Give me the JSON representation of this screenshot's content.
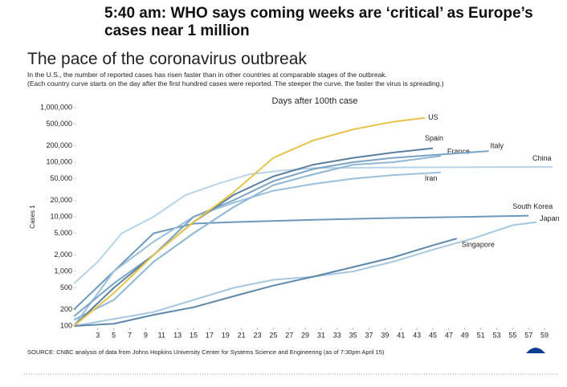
{
  "headline": "5:40 am: WHO says coming weeks are ‘critical’ as Europe’s cases near 1 million",
  "chart_data": {
    "type": "line",
    "title": "The pace of the coronavirus outbreak",
    "subtitle": [
      "In the U.S., the number of reported cases has risen faster than in other countries at comparable stages of the outbreak.",
      "(Each country curve starts on the day after the first hundred cases were reported. The steeper the curve, the faster the virus is spreading.)"
    ],
    "x_label": "Days after 100th case",
    "y_label": "Cases 1",
    "source": "SOURCE: CNBC analysis of data from Johns Hopkins University Center for Systems Science and Engineering (as of 7:30pm April 15)",
    "log_y": true,
    "xlim": [
      0,
      60
    ],
    "xticks": [
      3,
      5,
      7,
      9,
      11,
      13,
      15,
      17,
      19,
      21,
      23,
      25,
      27,
      29,
      31,
      33,
      35,
      37,
      39,
      41,
      43,
      45,
      47,
      49,
      51,
      53,
      55,
      57,
      59
    ],
    "ylim": [
      100,
      1000000
    ],
    "yticks": [
      100,
      200,
      500,
      {
        "value": 1000,
        "label": "1,000"
      },
      {
        "value": 2000,
        "label": "2,000"
      },
      {
        "value": 5000,
        "label": "5,000"
      },
      {
        "value": 10000,
        "label": "10,000"
      },
      {
        "value": 20000,
        "label": "20,000"
      },
      {
        "value": 50000,
        "label": "50,000"
      },
      {
        "value": 100000,
        "label": "100,000"
      },
      {
        "value": 200000,
        "label": "200,000"
      },
      {
        "value": 500000,
        "label": "500,000"
      },
      {
        "value": 1000000,
        "label": "1,000,000"
      }
    ],
    "series": [
      {
        "name": "China",
        "color": "#b7d4e8",
        "x": [
          0,
          3,
          6,
          10,
          14,
          18,
          22,
          26,
          30,
          40,
          50,
          60
        ],
        "values": [
          600,
          1500,
          5000,
          10000,
          25000,
          40000,
          60000,
          70000,
          78000,
          80000,
          81000,
          82000
        ]
      },
      {
        "name": "Japan",
        "color": "#a6c7e0",
        "x": [
          0,
          10,
          20,
          25,
          30,
          35,
          40,
          45,
          50,
          55,
          58
        ],
        "values": [
          100,
          180,
          500,
          700,
          800,
          1000,
          1500,
          2500,
          4000,
          7000,
          8000
        ]
      },
      {
        "name": "Singapore",
        "color": "#5e87ab",
        "x": [
          0,
          5,
          10,
          15,
          20,
          25,
          30,
          35,
          40,
          45,
          48
        ],
        "values": [
          100,
          110,
          160,
          220,
          350,
          550,
          800,
          1200,
          1800,
          3000,
          4000
        ]
      },
      {
        "name": "South Korea",
        "color": "#6d98bb",
        "x": [
          0,
          5,
          10,
          15,
          20,
          30,
          40,
          50,
          57
        ],
        "values": [
          200,
          1000,
          5000,
          7500,
          8000,
          8800,
          9500,
          10000,
          10500
        ]
      },
      {
        "name": "Iran",
        "color": "#9ac0dc",
        "x": [
          0,
          5,
          10,
          15,
          20,
          25,
          30,
          35,
          40,
          46
        ],
        "values": [
          100,
          1000,
          3500,
          10000,
          18000,
          30000,
          40000,
          50000,
          58000,
          65000
        ]
      },
      {
        "name": "France",
        "color": "#8fb6d4",
        "x": [
          0,
          5,
          10,
          15,
          20,
          25,
          30,
          35,
          40,
          46
        ],
        "values": [
          130,
          300,
          1500,
          5000,
          15000,
          38000,
          60000,
          90000,
          100000,
          130000
        ]
      },
      {
        "name": "Italy",
        "color": "#7aa3c4",
        "x": [
          0,
          5,
          10,
          15,
          20,
          25,
          30,
          35,
          40,
          45,
          52
        ],
        "values": [
          150,
          600,
          2000,
          10000,
          20000,
          45000,
          75000,
          100000,
          120000,
          135000,
          160000
        ]
      },
      {
        "name": "Spain",
        "color": "#5a7fa0",
        "x": [
          0,
          5,
          10,
          15,
          20,
          25,
          30,
          35,
          40,
          45
        ],
        "values": [
          100,
          500,
          2000,
          8000,
          25000,
          55000,
          90000,
          120000,
          150000,
          180000
        ]
      },
      {
        "name": "US",
        "color": "#e8c34a",
        "x": [
          0,
          5,
          10,
          15,
          20,
          25,
          30,
          35,
          40,
          44
        ],
        "values": [
          100,
          400,
          2000,
          8000,
          28000,
          120000,
          250000,
          400000,
          550000,
          650000
        ]
      }
    ]
  }
}
